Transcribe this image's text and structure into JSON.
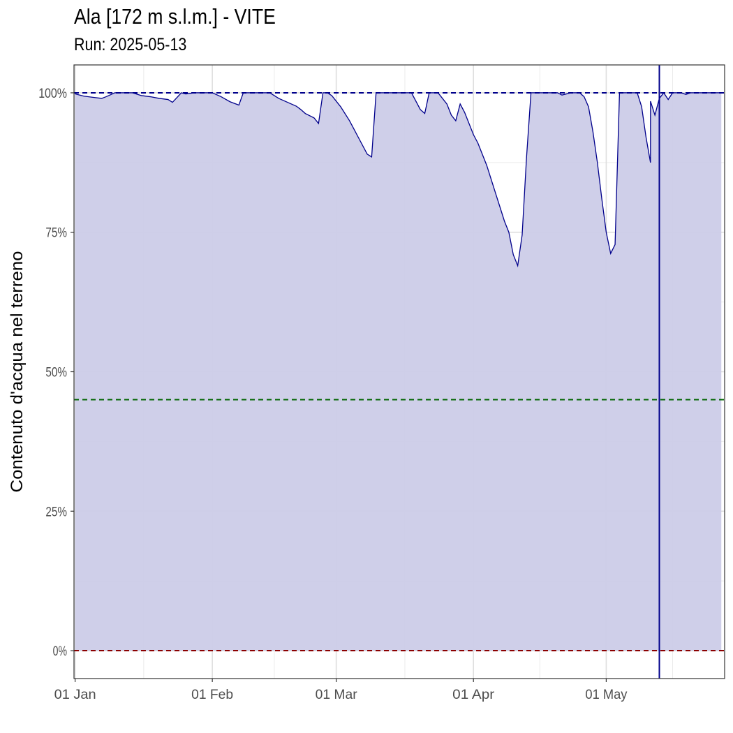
{
  "title": "Ala [172 m s.l.m.] - VITE",
  "subtitle": "Run: 2025-05-13",
  "chart_data": {
    "type": "area",
    "title": "Ala [172 m s.l.m.] - VITE",
    "subtitle": "Run: 2025-05-13",
    "xlabel": "",
    "ylabel": "Contenuto d'acqua nel terreno",
    "x_tick_labels": [
      "01 Jan",
      "01 Feb",
      "01 Mar",
      "01 Apr",
      "01 May"
    ],
    "x_ticks": [
      "2025-01-01",
      "2025-02-01",
      "2025-03-01",
      "2025-04-01",
      "2025-05-01"
    ],
    "y_tick_labels": [
      "0%",
      "25%",
      "50%",
      "75%",
      "100%"
    ],
    "y_ticks": [
      0,
      25,
      50,
      75,
      100
    ],
    "xlim": [
      "2025-01-01",
      "2025-05-27"
    ],
    "ylim": [
      -5,
      105
    ],
    "grid": true,
    "series": [
      {
        "values": [
          [
            "2025-01-01",
            99.8
          ],
          [
            "2025-01-02",
            99.6
          ],
          [
            "2025-01-03",
            99.4
          ],
          [
            "2025-01-05",
            99.2
          ],
          [
            "2025-01-07",
            99.0
          ],
          [
            "2025-01-08",
            99.3
          ],
          [
            "2025-01-10",
            100
          ],
          [
            "2025-01-14",
            100
          ],
          [
            "2025-01-16",
            99.5
          ],
          [
            "2025-01-18",
            99.3
          ],
          [
            "2025-01-20",
            99.0
          ],
          [
            "2025-01-22",
            98.8
          ],
          [
            "2025-01-23",
            98.3
          ],
          [
            "2025-01-25",
            100
          ],
          [
            "2025-01-26",
            99.8
          ],
          [
            "2025-01-28",
            100
          ],
          [
            "2025-02-01",
            100
          ],
          [
            "2025-02-03",
            99.3
          ],
          [
            "2025-02-05",
            98.4
          ],
          [
            "2025-02-07",
            97.8
          ],
          [
            "2025-02-08",
            100
          ],
          [
            "2025-02-14",
            100
          ],
          [
            "2025-02-16",
            99.0
          ],
          [
            "2025-02-18",
            98.3
          ],
          [
            "2025-02-20",
            97.6
          ],
          [
            "2025-02-21",
            97.0
          ],
          [
            "2025-02-22",
            96.3
          ],
          [
            "2025-02-24",
            95.5
          ],
          [
            "2025-02-25",
            94.5
          ],
          [
            "2025-02-26",
            100
          ],
          [
            "2025-02-27",
            100
          ],
          [
            "2025-02-28",
            99.5
          ],
          [
            "2025-03-02",
            97.5
          ],
          [
            "2025-03-04",
            95.0
          ],
          [
            "2025-03-06",
            92.0
          ],
          [
            "2025-03-08",
            89.0
          ],
          [
            "2025-03-09",
            88.5
          ],
          [
            "2025-03-10",
            100
          ],
          [
            "2025-03-18",
            100
          ],
          [
            "2025-03-20",
            97.0
          ],
          [
            "2025-03-21",
            96.3
          ],
          [
            "2025-03-22",
            100
          ],
          [
            "2025-03-24",
            100
          ],
          [
            "2025-03-26",
            98.0
          ],
          [
            "2025-03-27",
            96.0
          ],
          [
            "2025-03-28",
            95.0
          ],
          [
            "2025-03-29",
            98.0
          ],
          [
            "2025-03-30",
            96.5
          ],
          [
            "2025-04-01",
            92.5
          ],
          [
            "2025-04-02",
            91.0
          ],
          [
            "2025-04-04",
            87.0
          ],
          [
            "2025-04-06",
            82.0
          ],
          [
            "2025-04-08",
            77.0
          ],
          [
            "2025-04-09",
            75.0
          ],
          [
            "2025-04-10",
            71.0
          ],
          [
            "2025-04-11",
            69.0
          ],
          [
            "2025-04-12",
            74.5
          ],
          [
            "2025-04-13",
            88.5
          ],
          [
            "2025-04-14",
            100
          ],
          [
            "2025-04-20",
            100
          ],
          [
            "2025-04-21",
            99.6
          ],
          [
            "2025-04-23",
            100
          ],
          [
            "2025-04-25",
            100
          ],
          [
            "2025-04-26",
            99.3
          ],
          [
            "2025-04-27",
            97.5
          ],
          [
            "2025-04-28",
            93.0
          ],
          [
            "2025-04-29",
            87.5
          ],
          [
            "2025-04-30",
            81.0
          ],
          [
            "2025-05-01",
            75.0
          ],
          [
            "2025-05-02",
            71.2
          ],
          [
            "2025-05-03",
            72.8
          ],
          [
            "2025-05-04",
            100
          ],
          [
            "2025-05-08",
            100
          ],
          [
            "2025-05-09",
            97.5
          ],
          [
            "2025-05-10",
            92.0
          ],
          [
            "2025-05-11",
            87.5
          ],
          [
            "2025-05-11",
            98.5
          ],
          [
            "2025-05-12",
            96.0
          ],
          [
            "2025-05-13",
            99.0
          ],
          [
            "2025-05-14",
            100
          ],
          [
            "2025-05-15",
            98.8
          ],
          [
            "2025-05-16",
            100
          ],
          [
            "2025-05-18",
            100
          ],
          [
            "2025-05-19",
            99.7
          ],
          [
            "2025-05-20",
            100
          ],
          [
            "2025-05-27",
            100
          ]
        ],
        "line_color": "#00008b",
        "fill_color": "#cccce8"
      }
    ],
    "reference_lines": [
      {
        "y": 100,
        "color": "#00008b",
        "style": "dashed"
      },
      {
        "y": 45,
        "color": "#006400",
        "style": "dashed"
      },
      {
        "y": 0,
        "color": "#8b0000",
        "style": "dashed"
      }
    ],
    "vertical_line": {
      "x": "2025-05-13",
      "color": "#00008b"
    }
  }
}
